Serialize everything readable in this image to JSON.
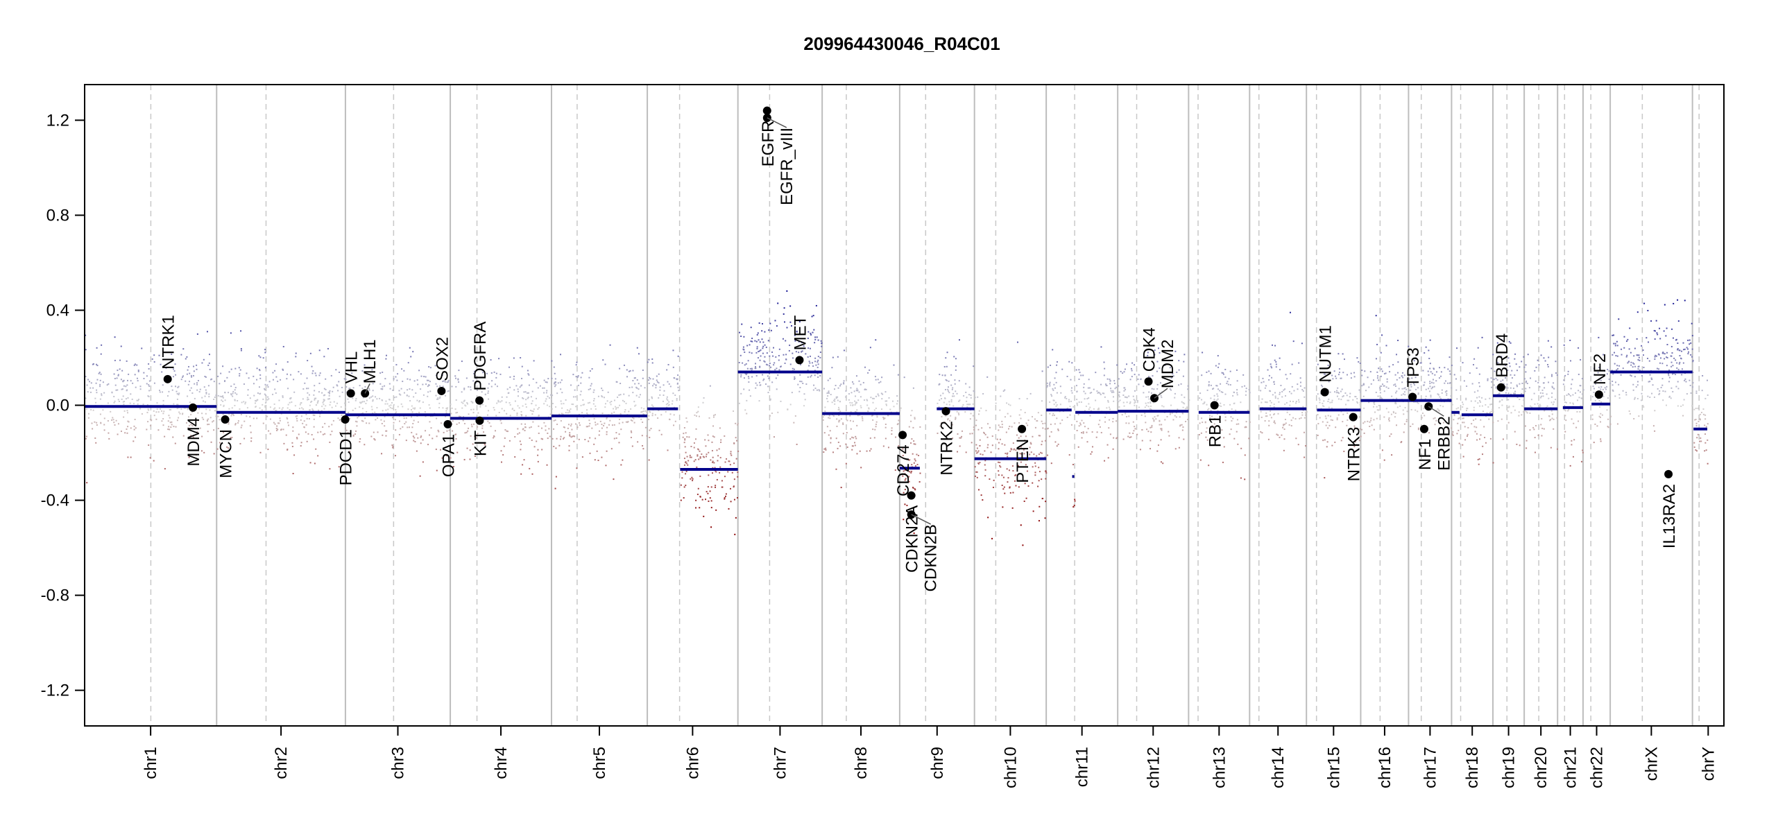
{
  "chart_data": {
    "type": "scatter",
    "title": "209964430046_R04C01",
    "xlabel": "",
    "ylabel": "",
    "ylim": [
      -1.35,
      1.35
    ],
    "yticks": [
      "1.2",
      "0.8",
      "0.4",
      "0.0",
      "-0.4",
      "-0.8",
      "-1.2"
    ],
    "grid": "chromosome boundaries (solid) and centromeres (dashed)",
    "colors": {
      "gain": "#00008b",
      "neutral": "#d3d3d3",
      "loss": "#8b0000",
      "segment": "#00008b",
      "gene_point": "#000000"
    },
    "chromosomes": [
      {
        "name": "chr1",
        "length_mb": 249.25,
        "centromere_mb": 125.0
      },
      {
        "name": "chr2",
        "length_mb": 243.2,
        "centromere_mb": 93.3
      },
      {
        "name": "chr3",
        "length_mb": 198.0,
        "centromere_mb": 91.0
      },
      {
        "name": "chr4",
        "length_mb": 191.15,
        "centromere_mb": 50.4
      },
      {
        "name": "chr5",
        "length_mb": 180.9,
        "centromere_mb": 48.4
      },
      {
        "name": "chr6",
        "length_mb": 171.1,
        "centromere_mb": 61.0
      },
      {
        "name": "chr7",
        "length_mb": 159.1,
        "centromere_mb": 59.9
      },
      {
        "name": "chr8",
        "length_mb": 146.4,
        "centromere_mb": 45.6
      },
      {
        "name": "chr9",
        "length_mb": 141.2,
        "centromere_mb": 49.0
      },
      {
        "name": "chr10",
        "length_mb": 135.5,
        "centromere_mb": 40.2
      },
      {
        "name": "chr11",
        "length_mb": 135.0,
        "centromere_mb": 53.7
      },
      {
        "name": "chr12",
        "length_mb": 133.85,
        "centromere_mb": 35.8
      },
      {
        "name": "chr13",
        "length_mb": 115.2,
        "centromere_mb": 17.9
      },
      {
        "name": "chr14",
        "length_mb": 107.3,
        "centromere_mb": 17.6
      },
      {
        "name": "chr15",
        "length_mb": 102.5,
        "centromere_mb": 19.0
      },
      {
        "name": "chr16",
        "length_mb": 90.35,
        "centromere_mb": 36.6
      },
      {
        "name": "chr17",
        "length_mb": 81.2,
        "centromere_mb": 24.0
      },
      {
        "name": "chr18",
        "length_mb": 78.1,
        "centromere_mb": 17.2
      },
      {
        "name": "chr19",
        "length_mb": 59.1,
        "centromere_mb": 26.5
      },
      {
        "name": "chr20",
        "length_mb": 63.0,
        "centromere_mb": 27.5
      },
      {
        "name": "chr21",
        "length_mb": 48.1,
        "centromere_mb": 13.2
      },
      {
        "name": "chr22",
        "length_mb": 51.3,
        "centromere_mb": 14.7
      },
      {
        "name": "chrX",
        "length_mb": 155.3,
        "centromere_mb": 60.6
      },
      {
        "name": "chrY",
        "length_mb": 59.4,
        "centromere_mb": 12.5
      }
    ],
    "segments": [
      {
        "chr": "chr1",
        "start_mb": 0,
        "end_mb": 249.25,
        "value": -0.005
      },
      {
        "chr": "chr2",
        "start_mb": 0,
        "end_mb": 243.2,
        "value": -0.03
      },
      {
        "chr": "chr3",
        "start_mb": 0,
        "end_mb": 198.0,
        "value": -0.04
      },
      {
        "chr": "chr4",
        "start_mb": 0,
        "end_mb": 191.15,
        "value": -0.055
      },
      {
        "chr": "chr5",
        "start_mb": 0,
        "end_mb": 180.9,
        "value": -0.045
      },
      {
        "chr": "chr6",
        "start_mb": 0,
        "end_mb": 58.0,
        "value": -0.015
      },
      {
        "chr": "chr6",
        "start_mb": 62.0,
        "end_mb": 171.1,
        "value": -0.27
      },
      {
        "chr": "chr7",
        "start_mb": 0,
        "end_mb": 159.1,
        "value": 0.14
      },
      {
        "chr": "chr8",
        "start_mb": 0,
        "end_mb": 146.4,
        "value": -0.035
      },
      {
        "chr": "chr9",
        "start_mb": 0,
        "end_mb": 38.0,
        "value": -0.265
      },
      {
        "chr": "chr9",
        "start_mb": 70.0,
        "end_mb": 141.2,
        "value": -0.015
      },
      {
        "chr": "chr10",
        "start_mb": 0,
        "end_mb": 135.5,
        "value": -0.225
      },
      {
        "chr": "chr11",
        "start_mb": 0,
        "end_mb": 48.0,
        "value": -0.02
      },
      {
        "chr": "chr11",
        "start_mb": 49.0,
        "end_mb": 53.0,
        "value": -0.3
      },
      {
        "chr": "chr11",
        "start_mb": 55.0,
        "end_mb": 135.0,
        "value": -0.03
      },
      {
        "chr": "chr12",
        "start_mb": 0,
        "end_mb": 133.85,
        "value": -0.025
      },
      {
        "chr": "chr13",
        "start_mb": 19.0,
        "end_mb": 115.2,
        "value": -0.03
      },
      {
        "chr": "chr14",
        "start_mb": 19.0,
        "end_mb": 107.3,
        "value": -0.015
      },
      {
        "chr": "chr15",
        "start_mb": 20.0,
        "end_mb": 102.5,
        "value": -0.02
      },
      {
        "chr": "chr16",
        "start_mb": 0,
        "end_mb": 90.35,
        "value": 0.02
      },
      {
        "chr": "chr17",
        "start_mb": 0,
        "end_mb": 81.2,
        "value": 0.02
      },
      {
        "chr": "chr18",
        "start_mb": 0,
        "end_mb": 15.0,
        "value": -0.03
      },
      {
        "chr": "chr18",
        "start_mb": 19.0,
        "end_mb": 78.1,
        "value": -0.04
      },
      {
        "chr": "chr19",
        "start_mb": 0,
        "end_mb": 59.1,
        "value": 0.04
      },
      {
        "chr": "chr20",
        "start_mb": 0,
        "end_mb": 63.0,
        "value": -0.015
      },
      {
        "chr": "chr21",
        "start_mb": 10.0,
        "end_mb": 48.1,
        "value": -0.01
      },
      {
        "chr": "chr22",
        "start_mb": 16.0,
        "end_mb": 51.3,
        "value": 0.005
      },
      {
        "chr": "chrX",
        "start_mb": 0,
        "end_mb": 155.3,
        "value": 0.14
      },
      {
        "chr": "chrY",
        "start_mb": 2.0,
        "end_mb": 28.0,
        "value": -0.1
      }
    ],
    "genes": [
      {
        "name": "NTRK1",
        "chr": "chr1",
        "pos_mb": 156.8,
        "value": 0.11
      },
      {
        "name": "MDM4",
        "chr": "chr1",
        "pos_mb": 204.5,
        "value": -0.01
      },
      {
        "name": "MYCN",
        "chr": "chr2",
        "pos_mb": 16.1,
        "value": -0.06
      },
      {
        "name": "PDCD1",
        "chr": "chr2",
        "pos_mb": 242.8,
        "value": -0.06
      },
      {
        "name": "VHL",
        "chr": "chr3",
        "pos_mb": 10.2,
        "value": 0.05
      },
      {
        "name": "MLH1",
        "chr": "chr3",
        "pos_mb": 37.0,
        "value": 0.05
      },
      {
        "name": "SOX2",
        "chr": "chr3",
        "pos_mb": 181.4,
        "value": 0.06
      },
      {
        "name": "OPA1",
        "chr": "chr3",
        "pos_mb": 193.3,
        "value": -0.08
      },
      {
        "name": "PDGFRA",
        "chr": "chr4",
        "pos_mb": 55.1,
        "value": 0.02
      },
      {
        "name": "KIT",
        "chr": "chr4",
        "pos_mb": 55.5,
        "value": -0.065
      },
      {
        "name": "EGFR",
        "chr": "chr7",
        "pos_mb": 55.1,
        "value": 1.24
      },
      {
        "name": "EGFR_vIII",
        "chr": "chr7",
        "pos_mb": 55.2,
        "value": 1.21
      },
      {
        "name": "MET",
        "chr": "chr7",
        "pos_mb": 116.3,
        "value": 0.19
      },
      {
        "name": "CD274",
        "chr": "chr9",
        "pos_mb": 5.5,
        "value": -0.125
      },
      {
        "name": "CDKN2A",
        "chr": "chr9",
        "pos_mb": 21.9,
        "value": -0.38
      },
      {
        "name": "CDKN2B",
        "chr": "chr9",
        "pos_mb": 22.0,
        "value": -0.46
      },
      {
        "name": "NTRK2",
        "chr": "chr9",
        "pos_mb": 87.3,
        "value": -0.025
      },
      {
        "name": "PTEN",
        "chr": "chr10",
        "pos_mb": 89.6,
        "value": -0.1
      },
      {
        "name": "CDK4",
        "chr": "chr12",
        "pos_mb": 58.1,
        "value": 0.1
      },
      {
        "name": "MDM2",
        "chr": "chr12",
        "pos_mb": 69.2,
        "value": 0.03
      },
      {
        "name": "RB1",
        "chr": "chr13",
        "pos_mb": 48.9,
        "value": 0.0
      },
      {
        "name": "NUTM1",
        "chr": "chr15",
        "pos_mb": 34.6,
        "value": 0.055
      },
      {
        "name": "NTRK3",
        "chr": "chr15",
        "pos_mb": 88.4,
        "value": -0.05
      },
      {
        "name": "TP53",
        "chr": "chr17",
        "pos_mb": 7.5,
        "value": 0.035
      },
      {
        "name": "NF1",
        "chr": "chr17",
        "pos_mb": 29.5,
        "value": -0.1
      },
      {
        "name": "ERBB2",
        "chr": "chr17",
        "pos_mb": 37.8,
        "value": -0.005
      },
      {
        "name": "BRD4",
        "chr": "chr19",
        "pos_mb": 15.4,
        "value": 0.075
      },
      {
        "name": "NF2",
        "chr": "chr22",
        "pos_mb": 30.0,
        "value": 0.045
      },
      {
        "name": "IL13RA2",
        "chr": "chrX",
        "pos_mb": 110.0,
        "value": -0.29
      }
    ]
  }
}
